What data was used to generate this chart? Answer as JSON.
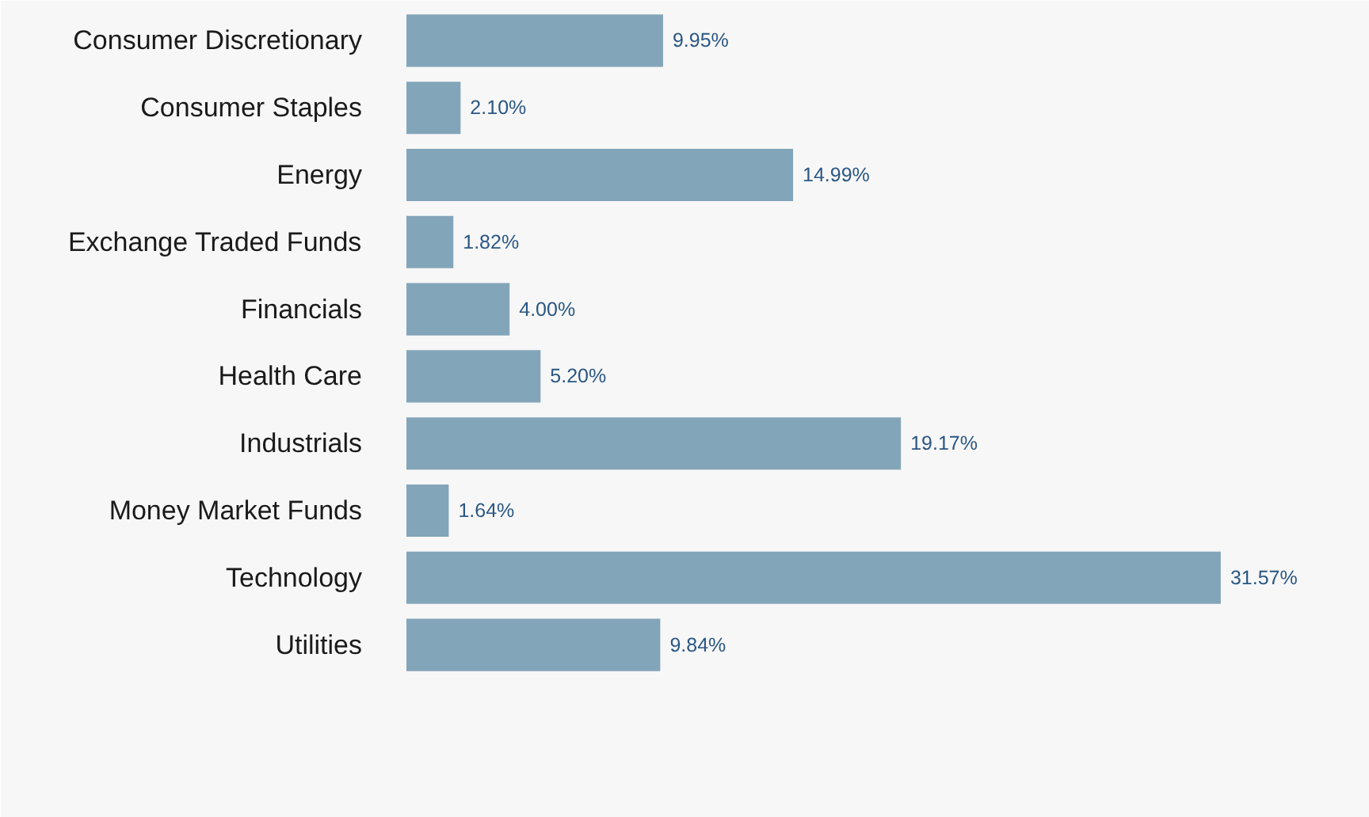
{
  "chart_data": {
    "type": "bar",
    "orientation": "horizontal",
    "categories": [
      "Consumer Discretionary",
      "Consumer Staples",
      "Energy",
      "Exchange Traded Funds",
      "Financials",
      "Health Care",
      "Industrials",
      "Money Market Funds",
      "Technology",
      "Utilities"
    ],
    "values": [
      9.95,
      2.1,
      14.99,
      1.82,
      4.0,
      5.2,
      19.17,
      1.64,
      31.57,
      9.84
    ],
    "value_labels": [
      "9.95%",
      "2.10%",
      "14.99%",
      "1.82%",
      "4.00%",
      "5.20%",
      "19.17%",
      "1.64%",
      "31.57%",
      "9.84%"
    ],
    "color": "#83a5b9"
  }
}
